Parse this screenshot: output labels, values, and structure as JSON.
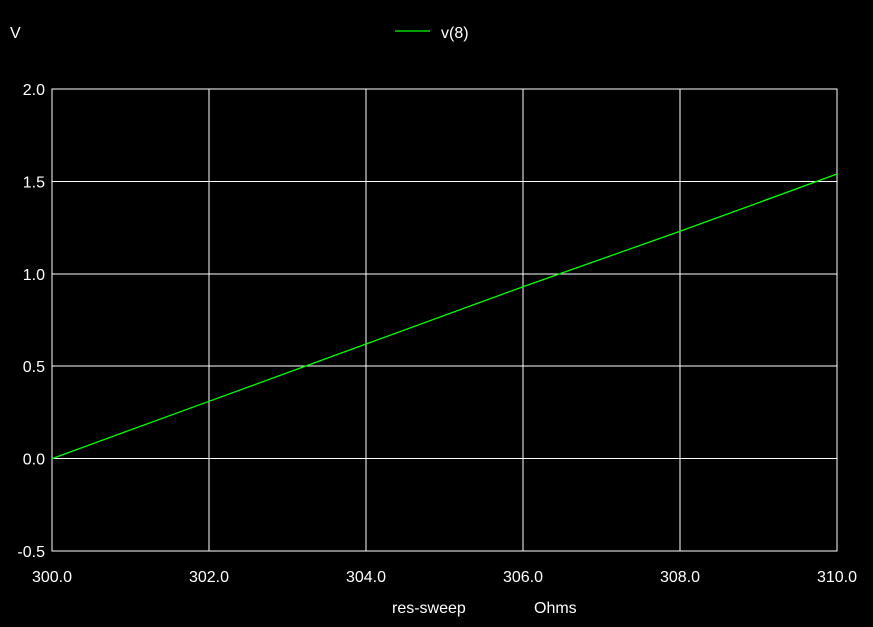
{
  "chart_data": {
    "type": "line",
    "ylabel": "V",
    "xlabel": "res-sweep",
    "xunit": "Ohms",
    "xlim": [
      300.0,
      310.0
    ],
    "ylim": [
      -0.5,
      2.0
    ],
    "xticks": [
      300.0,
      302.0,
      304.0,
      306.0,
      308.0,
      310.0
    ],
    "yticks": [
      -0.5,
      0.0,
      0.5,
      1.0,
      1.5,
      2.0
    ],
    "xtick_labels": [
      "300.0",
      "302.0",
      "304.0",
      "306.0",
      "308.0",
      "310.0"
    ],
    "ytick_labels": [
      "-0.5",
      "0.0",
      "0.5",
      "1.0",
      "1.5",
      "2.0"
    ],
    "grid": true,
    "legend_position": "top-center",
    "background": "#000000",
    "series": [
      {
        "name": "v(8)",
        "color": "#00ff00",
        "x": [
          300.0,
          302.0,
          304.0,
          306.0,
          308.0,
          310.0
        ],
        "y": [
          0.0,
          0.31,
          0.62,
          0.93,
          1.23,
          1.54
        ]
      }
    ]
  }
}
